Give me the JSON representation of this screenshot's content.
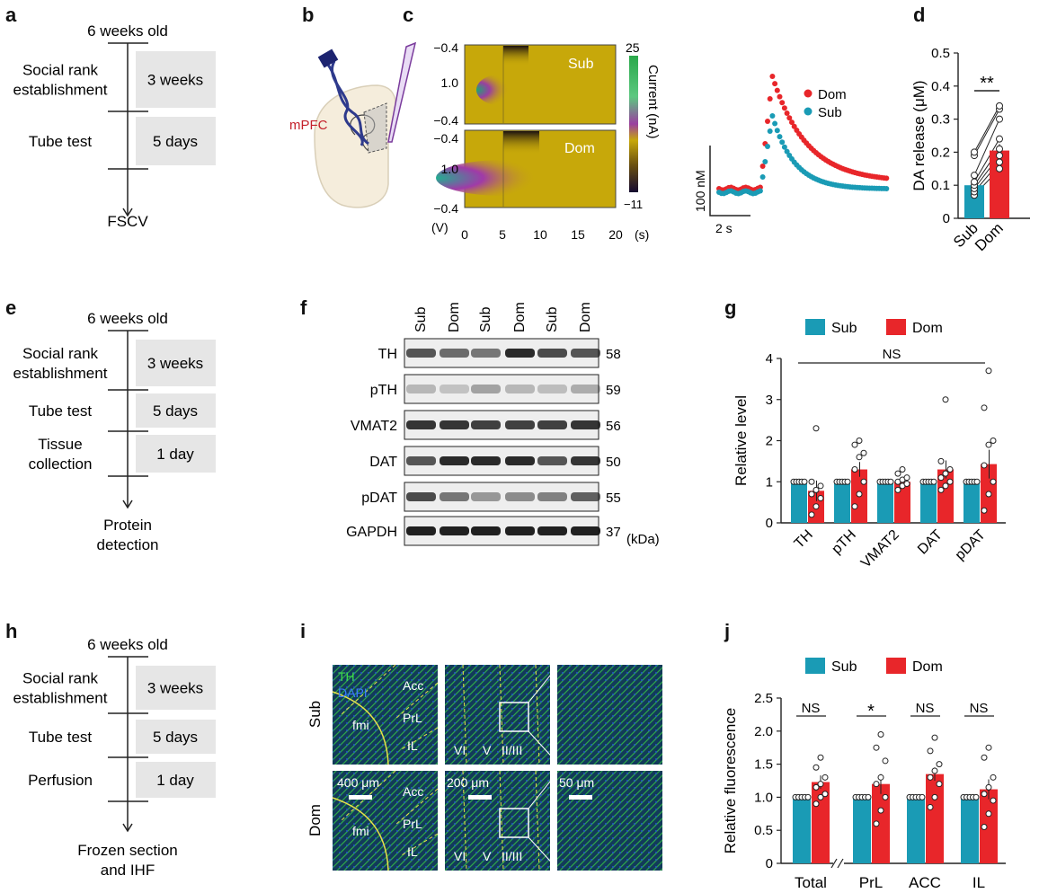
{
  "colors": {
    "sub": "#1a9bb5",
    "dom": "#e8262a",
    "box": "#e6e6e6",
    "heat_bg": "#c7a80a"
  },
  "panel_labels": {
    "a": "a",
    "b": "b",
    "c": "c",
    "d": "d",
    "e": "e",
    "f": "f",
    "g": "g",
    "h": "h",
    "i": "i",
    "j": "j"
  },
  "timelines": {
    "a": {
      "top": "6 weeks old",
      "steps": [
        {
          "label": "Social rank establishment",
          "lines": [
            "Social rank",
            "establishment"
          ],
          "duration": "3 weeks"
        },
        {
          "label": "Tube test",
          "lines": [
            "Tube test"
          ],
          "duration": "5 days"
        }
      ],
      "bottom": [
        "FSCV"
      ]
    },
    "e": {
      "top": "6 weeks old",
      "steps": [
        {
          "lines": [
            "Social rank",
            "establishment"
          ],
          "duration": "3 weeks"
        },
        {
          "lines": [
            "Tube test"
          ],
          "duration": "5 days"
        },
        {
          "lines": [
            "Tissue",
            "collection"
          ],
          "duration": "1 day"
        }
      ],
      "bottom": [
        "Protein",
        "detection"
      ]
    },
    "h": {
      "top": "6 weeks old",
      "steps": [
        {
          "lines": [
            "Social rank",
            "establishment"
          ],
          "duration": "3 weeks"
        },
        {
          "lines": [
            "Tube test"
          ],
          "duration": "5 days"
        },
        {
          "lines": [
            "Perfusion"
          ],
          "duration": "1 day"
        }
      ],
      "bottom": [
        "Frozen section",
        "and IHF"
      ]
    }
  },
  "panel_b": {
    "region": "mPFC"
  },
  "panel_c": {
    "heatmaps": [
      {
        "label": "Sub"
      },
      {
        "label": "Dom"
      }
    ],
    "y_ticks": [
      "−0.4",
      "1.0",
      "−0.4",
      "−0.4",
      "1.0",
      "−0.4"
    ],
    "y_unit": "(V)",
    "x_ticks": [
      "0",
      "5",
      "10",
      "15",
      "20"
    ],
    "x_unit": "(s)",
    "colorbar": {
      "max": "25",
      "min": "−11",
      "label": "Current (nA)"
    },
    "trace_legend": [
      {
        "name": "Dom"
      },
      {
        "name": "Sub"
      }
    ],
    "scalebar_y": "100 nM",
    "scalebar_x": "2 s"
  },
  "panel_f": {
    "lanes": [
      "Sub",
      "Dom",
      "Sub",
      "Dom",
      "Sub",
      "Dom"
    ],
    "rows": [
      {
        "name": "TH",
        "kda": "58"
      },
      {
        "name": "pTH",
        "kda": "59"
      },
      {
        "name": "VMAT2",
        "kda": "56"
      },
      {
        "name": "DAT",
        "kda": "50"
      },
      {
        "name": "pDAT",
        "kda": "55"
      },
      {
        "name": "GAPDH",
        "kda": "37"
      }
    ],
    "unit": "(kDa)"
  },
  "panel_i": {
    "rows": [
      "Sub",
      "Dom"
    ],
    "stain_th": "TH",
    "stain_dapi": "DAPI",
    "regions": [
      "Acc",
      "PrL",
      "IL",
      "fmi"
    ],
    "layers": [
      "VI",
      "V",
      "II/III"
    ],
    "scalebars": [
      "400 μm",
      "200 μm",
      "50 μm"
    ]
  },
  "chart_data": [
    {
      "type": "bar",
      "panel": "d",
      "categories": [
        "Sub",
        "Dom"
      ],
      "values": [
        0.1,
        0.205
      ],
      "errors": [
        0.012,
        0.02
      ],
      "points": {
        "Sub": [
          0.07,
          0.08,
          0.09,
          0.1,
          0.11,
          0.13,
          0.19,
          0.2
        ],
        "Dom": [
          0.15,
          0.17,
          0.19,
          0.21,
          0.24,
          0.3,
          0.33,
          0.34
        ]
      },
      "ylabel": "DA release (μM)",
      "ylim": [
        0,
        0.5
      ],
      "yticks": [
        "0",
        "0.1",
        "0.2",
        "0.3",
        "0.4",
        "0.5"
      ],
      "significance": "**"
    },
    {
      "type": "bar",
      "panel": "g",
      "categories": [
        "TH",
        "pTH",
        "VMAT2",
        "DAT",
        "pDAT"
      ],
      "series": [
        {
          "name": "Sub",
          "values": [
            1,
            1,
            1,
            1,
            1
          ],
          "errors": [
            0,
            0,
            0,
            0,
            0
          ]
        },
        {
          "name": "Dom",
          "values": [
            0.78,
            1.3,
            1.0,
            1.3,
            1.43
          ],
          "errors": [
            0.25,
            0.18,
            0.06,
            0.22,
            0.35
          ]
        }
      ],
      "dom_points": [
        [
          0.2,
          0.4,
          0.6,
          0.7,
          0.8,
          0.9,
          1.0,
          2.3
        ],
        [
          0.4,
          0.7,
          1.0,
          1.3,
          1.6,
          1.7,
          1.9,
          2.0
        ],
        [
          0.8,
          0.9,
          0.95,
          1.0,
          1.05,
          1.1,
          1.2,
          1.3
        ],
        [
          0.8,
          0.9,
          1.0,
          1.1,
          1.2,
          1.3,
          1.5,
          3.0
        ],
        [
          0.3,
          0.7,
          1.0,
          1.4,
          1.9,
          2.0,
          2.8,
          3.7
        ]
      ],
      "ylabel": "Relative level",
      "ylim": [
        0,
        4
      ],
      "yticks": [
        "0",
        "1",
        "2",
        "3",
        "4"
      ],
      "significance": "NS"
    },
    {
      "type": "bar",
      "panel": "j",
      "categories": [
        "Total",
        "PrL",
        "ACC",
        "IL"
      ],
      "series": [
        {
          "name": "Sub",
          "values": [
            1,
            1,
            1,
            1
          ],
          "errors": [
            0,
            0,
            0,
            0
          ]
        },
        {
          "name": "Dom",
          "values": [
            1.23,
            1.2,
            1.35,
            1.12
          ],
          "errors": [
            0.1,
            0.15,
            0.1,
            0.15
          ]
        }
      ],
      "dom_points": [
        [
          0.9,
          1.0,
          1.05,
          1.15,
          1.2,
          1.3,
          1.45,
          1.6
        ],
        [
          0.6,
          0.8,
          1.0,
          1.2,
          1.3,
          1.55,
          1.75,
          1.95
        ],
        [
          0.85,
          1.0,
          1.2,
          1.3,
          1.4,
          1.5,
          1.7,
          1.9
        ],
        [
          0.55,
          0.75,
          0.95,
          1.05,
          1.15,
          1.3,
          1.6,
          1.75
        ]
      ],
      "ylabel": "Relative fluorescence",
      "ylim": [
        0,
        2.5
      ],
      "yticks": [
        "0",
        "0.5",
        "1.0",
        "1.5",
        "2.0",
        "2.5"
      ],
      "significance": [
        "NS",
        "*",
        "NS",
        "NS"
      ]
    }
  ]
}
